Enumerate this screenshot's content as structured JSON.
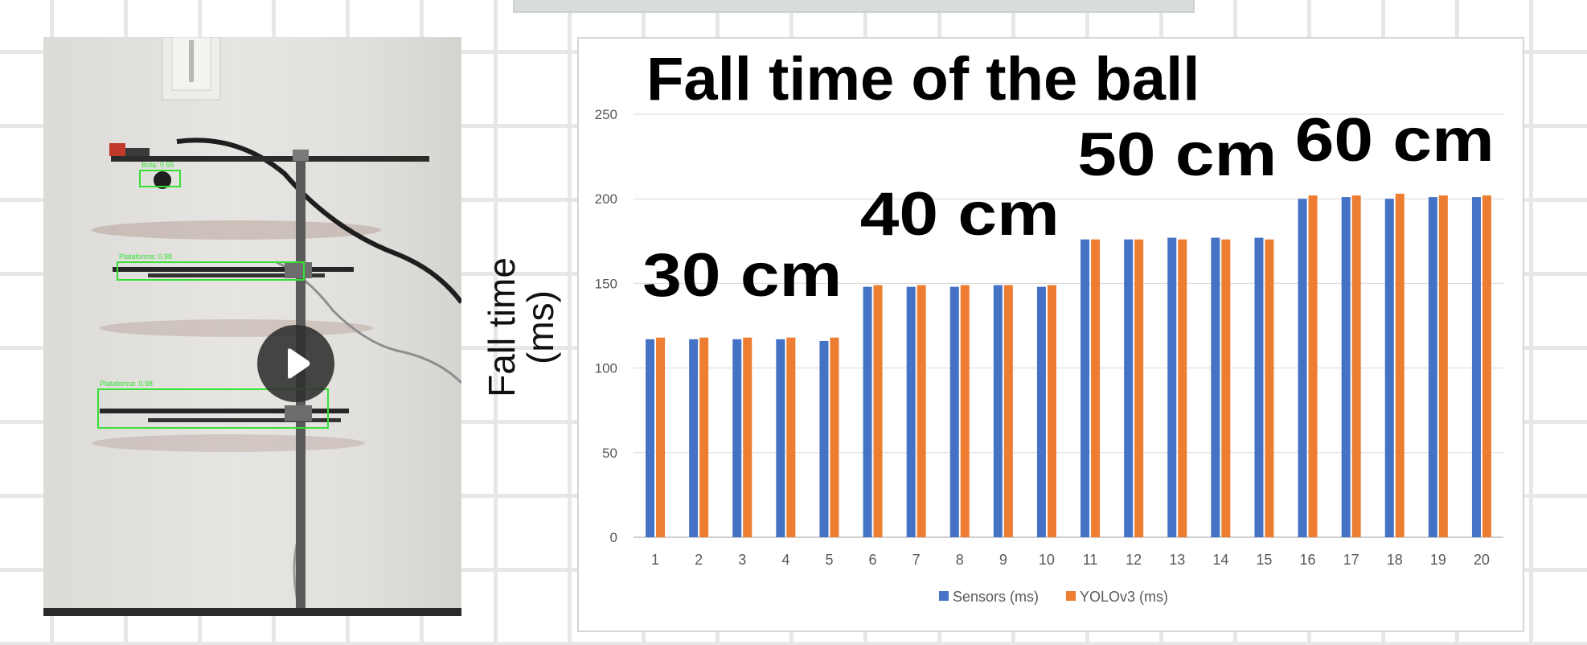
{
  "video": {
    "detections": [
      {
        "label": "Bola: 0.55"
      },
      {
        "label": "Plataforma: 0.98"
      },
      {
        "label": "Plataforma: 0.98"
      }
    ],
    "play_icon": "play-icon"
  },
  "chart_ylabel_lines": [
    "Fall time",
    "(ms)"
  ],
  "colors": {
    "sensors": "#4472C4",
    "yolo": "#ED7D31",
    "grid": "#d9d9d9",
    "tick": "#595959",
    "detect": "#35e035"
  },
  "chart_data": {
    "type": "bar",
    "title": "Fall time of the ball",
    "xlabel": "",
    "ylabel": "Fall time (ms)",
    "ylim": [
      0,
      250
    ],
    "yticks": [
      0,
      50,
      100,
      150,
      200,
      250
    ],
    "grid": true,
    "legend": "bottom",
    "categories": [
      "1",
      "2",
      "3",
      "4",
      "5",
      "6",
      "7",
      "8",
      "9",
      "10",
      "11",
      "12",
      "13",
      "14",
      "15",
      "16",
      "17",
      "18",
      "19",
      "20"
    ],
    "series": [
      {
        "name": "Sensors (ms)",
        "values": [
          117,
          117,
          117,
          117,
          116,
          148,
          148,
          148,
          149,
          148,
          176,
          176,
          177,
          177,
          177,
          200,
          201,
          200,
          201,
          201
        ]
      },
      {
        "name": "YOLOv3 (ms)",
        "values": [
          118,
          118,
          118,
          118,
          118,
          149,
          149,
          149,
          149,
          149,
          176,
          176,
          176,
          176,
          176,
          202,
          202,
          203,
          202,
          202
        ]
      }
    ],
    "annotations": [
      {
        "text": "30 cm",
        "category": "3"
      },
      {
        "text": "40 cm",
        "category": "8"
      },
      {
        "text": "50 cm",
        "category": "13"
      },
      {
        "text": "60 cm",
        "category": "18"
      }
    ]
  }
}
